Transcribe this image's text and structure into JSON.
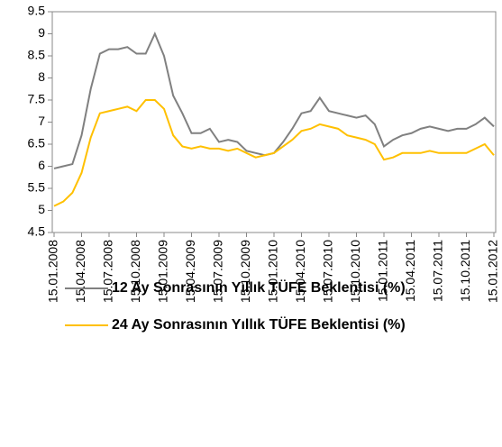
{
  "chart_data": {
    "type": "line",
    "categories": [
      "15.01.2008",
      null,
      null,
      "15.04.2008",
      null,
      null,
      "15.07.2008",
      null,
      null,
      "15.10.2008",
      null,
      null,
      "15.01.2009",
      null,
      null,
      "15.04.2009",
      null,
      null,
      "15.07.2009",
      null,
      null,
      "15.10.2009",
      null,
      null,
      "15.01.2010",
      null,
      null,
      "15.04.2010",
      null,
      null,
      "15.07.2010",
      null,
      null,
      "15.10.2010",
      null,
      null,
      "15.01.2011",
      null,
      null,
      "15.04.2011",
      null,
      null,
      "15.07.2011",
      null,
      null,
      "15.10.2011",
      null,
      null,
      "15.01.2012"
    ],
    "series": [
      {
        "name": "12 Ay Sonrasının Yıllık TÜFE Beklentisi (%)",
        "color": "#808080",
        "values": [
          5.95,
          6.0,
          6.05,
          6.7,
          7.75,
          8.55,
          8.65,
          8.65,
          8.7,
          8.55,
          8.55,
          9.0,
          8.5,
          7.6,
          7.2,
          6.75,
          6.75,
          6.85,
          6.55,
          6.6,
          6.55,
          6.35,
          6.3,
          6.25,
          6.3,
          6.55,
          6.85,
          7.2,
          7.25,
          7.55,
          7.25,
          7.2,
          7.15,
          7.1,
          7.15,
          6.95,
          6.45,
          6.6,
          6.7,
          6.75,
          6.85,
          6.9,
          6.85,
          6.8,
          6.85,
          6.85,
          6.95,
          7.1,
          6.9
        ]
      },
      {
        "name": "24 Ay Sonrasının Yıllık TÜFE Beklentisi (%)",
        "color": "#ffc000",
        "values": [
          5.1,
          5.2,
          5.4,
          5.85,
          6.65,
          7.2,
          7.25,
          7.3,
          7.35,
          7.25,
          7.5,
          7.5,
          7.3,
          6.7,
          6.45,
          6.4,
          6.45,
          6.4,
          6.4,
          6.35,
          6.4,
          6.3,
          6.2,
          6.25,
          6.3,
          6.45,
          6.6,
          6.8,
          6.85,
          6.95,
          6.9,
          6.85,
          6.7,
          6.65,
          6.6,
          6.5,
          6.15,
          6.2,
          6.3,
          6.3,
          6.3,
          6.35,
          6.3,
          6.3,
          6.3,
          6.3,
          6.4,
          6.5,
          6.25
        ]
      }
    ],
    "ylim": [
      4.5,
      9.5
    ],
    "yticks": [
      4.5,
      5,
      5.5,
      6,
      6.5,
      7,
      7.5,
      8,
      8.5,
      9,
      9.5
    ]
  }
}
